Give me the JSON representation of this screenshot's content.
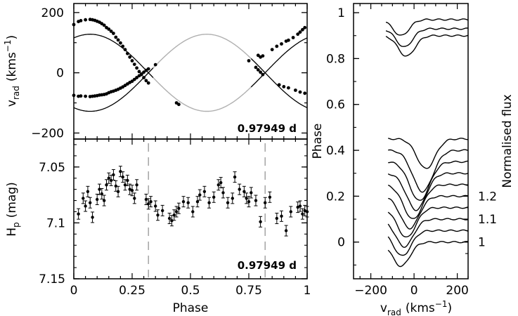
{
  "chart_data": [
    {
      "type": "scatter",
      "panel": "radial-velocity",
      "ylabel_main": "v",
      "ylabel_sub": "rad",
      "ylabel_units_pre": "(kms",
      "ylabel_units_sup": "−1",
      "ylabel_units_post": ")",
      "annotation": "0.97949 d",
      "xlim": [
        0,
        1
      ],
      "ylim": [
        -220,
        230
      ],
      "yticks": [
        {
          "v": 200,
          "label": "200"
        },
        {
          "v": 0,
          "label": "0"
        },
        {
          "v": -200,
          "label": "−200"
        }
      ],
      "series": [
        {
          "role": "primary",
          "points": [
            [
              0.0,
              -75
            ],
            [
              0.02,
              -78
            ],
            [
              0.03,
              -77
            ],
            [
              0.05,
              -78
            ],
            [
              0.07,
              -79
            ],
            [
              0.08,
              -78
            ],
            [
              0.09,
              -77
            ],
            [
              0.1,
              -76
            ],
            [
              0.11,
              -74
            ],
            [
              0.12,
              -73
            ],
            [
              0.13,
              -72
            ],
            [
              0.14,
              -70
            ],
            [
              0.15,
              -66
            ],
            [
              0.16,
              -63
            ],
            [
              0.17,
              -61
            ],
            [
              0.18,
              -58
            ],
            [
              0.19,
              -55
            ],
            [
              0.2,
              -51
            ],
            [
              0.21,
              -47
            ],
            [
              0.22,
              -42
            ],
            [
              0.23,
              -37
            ],
            [
              0.24,
              -32
            ],
            [
              0.25,
              -28
            ],
            [
              0.26,
              -22
            ],
            [
              0.27,
              -16
            ],
            [
              0.28,
              -10
            ],
            [
              0.29,
              -4
            ],
            [
              0.3,
              2
            ],
            [
              0.31,
              8
            ],
            [
              0.32,
              13
            ],
            [
              0.35,
              27
            ],
            [
              0.44,
              -100
            ],
            [
              0.45,
              -105
            ],
            [
              0.75,
              40
            ],
            [
              0.78,
              18
            ],
            [
              0.79,
              10
            ],
            [
              0.8,
              2
            ],
            [
              0.81,
              -6
            ],
            [
              0.88,
              -40
            ],
            [
              0.9,
              -46
            ],
            [
              0.92,
              -50
            ],
            [
              0.95,
              -58
            ],
            [
              0.97,
              -64
            ],
            [
              0.99,
              -68
            ]
          ]
        },
        {
          "role": "secondary",
          "points": [
            [
              0.0,
              160
            ],
            [
              0.02,
              170
            ],
            [
              0.03,
              173
            ],
            [
              0.05,
              176
            ],
            [
              0.07,
              177
            ],
            [
              0.08,
              176
            ],
            [
              0.09,
              174
            ],
            [
              0.1,
              171
            ],
            [
              0.11,
              168
            ],
            [
              0.12,
              163
            ],
            [
              0.13,
              158
            ],
            [
              0.14,
              150
            ],
            [
              0.15,
              145
            ],
            [
              0.16,
              138
            ],
            [
              0.17,
              131
            ],
            [
              0.18,
              118
            ],
            [
              0.19,
              109
            ],
            [
              0.2,
              99
            ],
            [
              0.21,
              88
            ],
            [
              0.22,
              77
            ],
            [
              0.23,
              64
            ],
            [
              0.24,
              52
            ],
            [
              0.25,
              40
            ],
            [
              0.26,
              28
            ],
            [
              0.27,
              16
            ],
            [
              0.28,
              4
            ],
            [
              0.29,
              -6
            ],
            [
              0.3,
              -16
            ],
            [
              0.31,
              -26
            ],
            [
              0.32,
              -34
            ],
            [
              0.79,
              58
            ],
            [
              0.8,
              52
            ],
            [
              0.81,
              56
            ],
            [
              0.85,
              77
            ],
            [
              0.87,
              88
            ],
            [
              0.89,
              96
            ],
            [
              0.91,
              105
            ],
            [
              0.92,
              108
            ],
            [
              0.94,
              117
            ],
            [
              0.96,
              128
            ],
            [
              0.97,
              135
            ],
            [
              0.98,
              143
            ],
            [
              0.99,
              150
            ]
          ]
        }
      ],
      "model_curves": "sinusoidal orbit solutions (black through data, grey other half)"
    },
    {
      "type": "scatter",
      "panel": "photometry",
      "ylabel_main": "H",
      "ylabel_sub": "p",
      "ylabel_units": "(mag)",
      "xlabel": "Phase",
      "annotation": "0.97949 d",
      "xlim": [
        0,
        1
      ],
      "ylim": [
        7.15,
        7.025
      ],
      "yticks": [
        {
          "v": 7.05,
          "label": "7.05"
        },
        {
          "v": 7.1,
          "label": "7.1"
        },
        {
          "v": 7.15,
          "label": "7.15"
        }
      ],
      "xticks": [
        {
          "v": 0,
          "label": "0"
        },
        {
          "v": 0.25,
          "label": "0.25"
        },
        {
          "v": 0.5,
          "label": "0.5"
        },
        {
          "v": 0.75,
          "label": "0.75"
        },
        {
          "v": 1,
          "label": "1"
        }
      ],
      "dashed_lines_x": [
        0.32,
        0.82
      ],
      "points": [
        [
          0.02,
          7.092
        ],
        [
          0.04,
          7.078
        ],
        [
          0.05,
          7.085
        ],
        [
          0.06,
          7.072
        ],
        [
          0.07,
          7.082
        ],
        [
          0.08,
          7.095
        ],
        [
          0.1,
          7.079
        ],
        [
          0.11,
          7.07
        ],
        [
          0.12,
          7.074
        ],
        [
          0.13,
          7.08
        ],
        [
          0.14,
          7.066
        ],
        [
          0.15,
          7.06
        ],
        [
          0.16,
          7.062
        ],
        [
          0.17,
          7.057
        ],
        [
          0.18,
          7.067
        ],
        [
          0.19,
          7.072
        ],
        [
          0.2,
          7.054
        ],
        [
          0.21,
          7.059
        ],
        [
          0.22,
          7.066
        ],
        [
          0.23,
          7.062
        ],
        [
          0.24,
          7.07
        ],
        [
          0.25,
          7.071
        ],
        [
          0.26,
          7.078
        ],
        [
          0.27,
          7.066
        ],
        [
          0.31,
          7.079
        ],
        [
          0.32,
          7.083
        ],
        [
          0.33,
          7.081
        ],
        [
          0.35,
          7.085
        ],
        [
          0.36,
          7.093
        ],
        [
          0.38,
          7.089
        ],
        [
          0.41,
          7.096
        ],
        [
          0.42,
          7.098
        ],
        [
          0.43,
          7.093
        ],
        [
          0.44,
          7.09
        ],
        [
          0.45,
          7.087
        ],
        [
          0.47,
          7.081
        ],
        [
          0.49,
          7.082
        ],
        [
          0.51,
          7.09
        ],
        [
          0.53,
          7.081
        ],
        [
          0.54,
          7.075
        ],
        [
          0.56,
          7.072
        ],
        [
          0.58,
          7.082
        ],
        [
          0.6,
          7.077
        ],
        [
          0.62,
          7.066
        ],
        [
          0.63,
          7.064
        ],
        [
          0.64,
          7.073
        ],
        [
          0.66,
          7.082
        ],
        [
          0.68,
          7.078
        ],
        [
          0.69,
          7.059
        ],
        [
          0.71,
          7.07
        ],
        [
          0.73,
          7.072
        ],
        [
          0.74,
          7.078
        ],
        [
          0.75,
          7.081
        ],
        [
          0.76,
          7.073
        ],
        [
          0.78,
          7.08
        ],
        [
          0.8,
          7.099
        ],
        [
          0.82,
          7.082
        ],
        [
          0.84,
          7.077
        ],
        [
          0.87,
          7.096
        ],
        [
          0.89,
          7.094
        ],
        [
          0.91,
          7.107
        ],
        [
          0.93,
          7.09
        ],
        [
          0.96,
          7.086
        ],
        [
          0.97,
          7.085
        ],
        [
          0.98,
          7.092
        ],
        [
          0.99,
          7.089
        ],
        [
          1.0,
          7.09
        ]
      ]
    },
    {
      "type": "line",
      "panel": "line-profiles",
      "xlabel_main": "v",
      "xlabel_sub": "rad",
      "xlabel_units_pre": "(kms",
      "xlabel_units_sup": "−1",
      "xlabel_units_post": ")",
      "ylabel_left": "Phase",
      "ylabel_right": "Normalised flux",
      "xlim": [
        -280,
        250
      ],
      "ylim_phase": [
        -0.16,
        1.04
      ],
      "xticks": [
        {
          "v": -200,
          "label": "−200"
        },
        {
          "v": 0,
          "label": "0"
        },
        {
          "v": 200,
          "label": "200"
        }
      ],
      "yticks_left": [
        {
          "v": 0,
          "label": "0"
        },
        {
          "v": 0.2,
          "label": "0.2"
        },
        {
          "v": 0.4,
          "label": "0.4"
        },
        {
          "v": 0.6,
          "label": "0.6"
        },
        {
          "v": 0.8,
          "label": "0.8"
        },
        {
          "v": 1,
          "label": "1"
        }
      ],
      "yticks_right": [
        {
          "v": 1.0,
          "label": "1"
        },
        {
          "v": 1.1,
          "label": "1.1"
        },
        {
          "v": 1.2,
          "label": "1.2"
        }
      ],
      "profiles": [
        {
          "phase": 0.0,
          "v_dip": -60,
          "depth": 0.105
        },
        {
          "phase": 0.05,
          "v_dip": -55,
          "depth": 0.11
        },
        {
          "phase": 0.1,
          "v_dip": -45,
          "depth": 0.12
        },
        {
          "phase": 0.15,
          "v_dip": -35,
          "depth": 0.13
        },
        {
          "phase": 0.2,
          "v_dip": -20,
          "depth": 0.14
        },
        {
          "phase": 0.25,
          "v_dip": -5,
          "depth": 0.15
        },
        {
          "phase": 0.3,
          "v_dip": 10,
          "depth": 0.16
        },
        {
          "phase": 0.35,
          "v_dip": 25,
          "depth": 0.17
        },
        {
          "phase": 0.4,
          "v_dip": 40,
          "depth": 0.18
        },
        {
          "phase": 0.45,
          "v_dip": 55,
          "depth": 0.13
        },
        {
          "phase": 0.9,
          "v_dip": -35,
          "depth": 0.09
        },
        {
          "phase": 0.93,
          "v_dip": -45,
          "depth": 0.08
        },
        {
          "phase": 0.97,
          "v_dip": -60,
          "depth": 0.07
        }
      ]
    }
  ]
}
